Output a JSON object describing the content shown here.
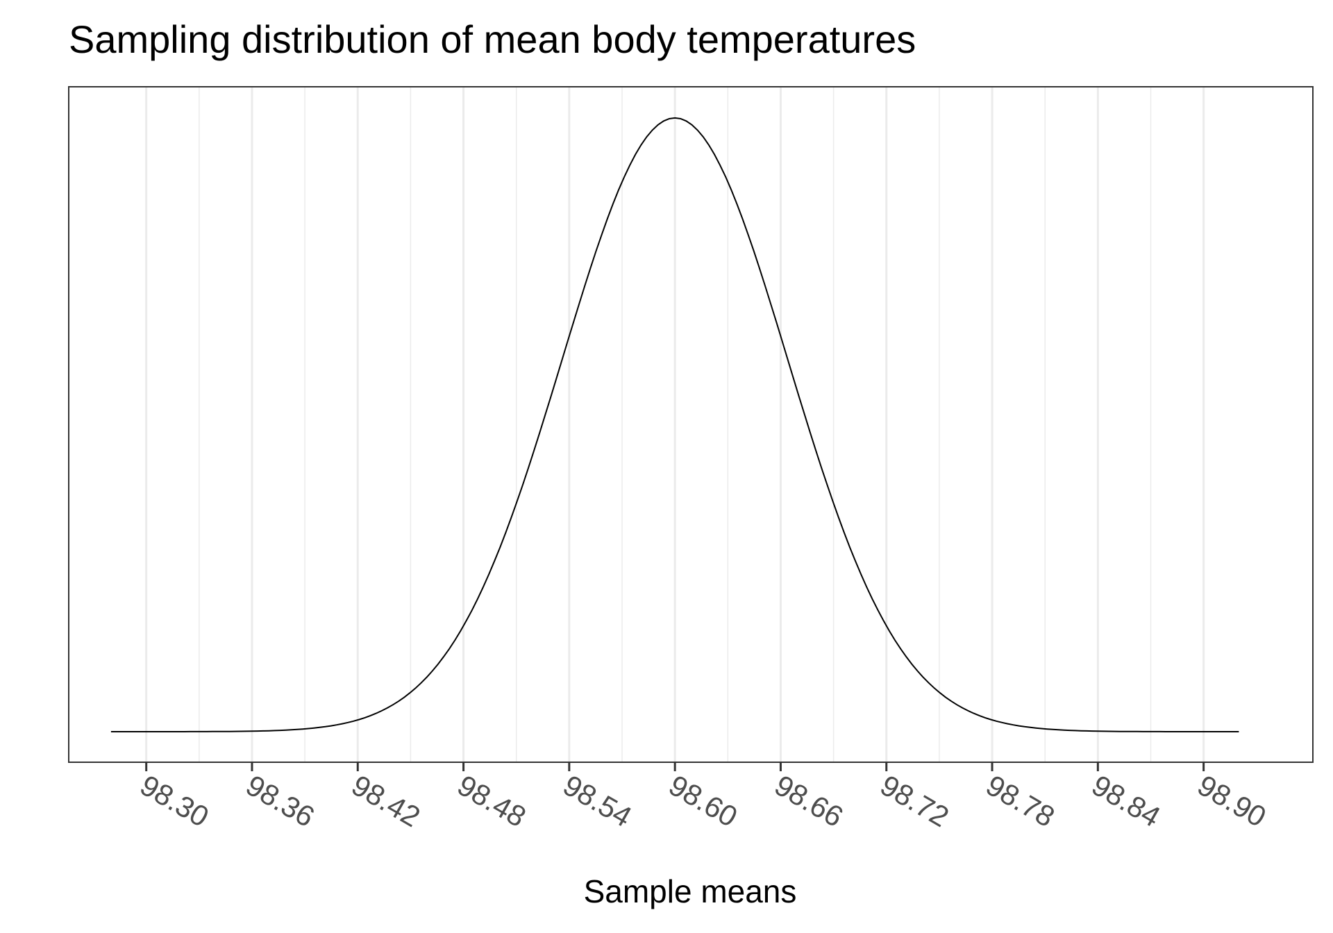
{
  "chart_data": {
    "type": "line",
    "title": "Sampling distribution of mean body temperatures",
    "xlabel": "Sample means",
    "ylabel": "",
    "distribution": "normal",
    "mean": 98.6,
    "sd": 0.064,
    "x_range_curve": [
      98.28,
      98.92
    ],
    "xlim": [
      98.256,
      98.962
    ],
    "ylim": [
      -0.31,
      6.55
    ],
    "x_ticks": [
      98.3,
      98.36,
      98.42,
      98.48,
      98.54,
      98.6,
      98.66,
      98.72,
      98.78,
      98.84,
      98.9
    ],
    "x_tick_labels": [
      "98.30",
      "98.36",
      "98.42",
      "98.48",
      "98.54",
      "98.60",
      "98.66",
      "98.72",
      "98.78",
      "98.84",
      "98.90"
    ],
    "y_ticks_shown": false,
    "grid": "vertical major and minor",
    "legend": "none",
    "colors": {
      "line": "#000000",
      "grid": "#ebebeb",
      "border": "#333333"
    }
  }
}
